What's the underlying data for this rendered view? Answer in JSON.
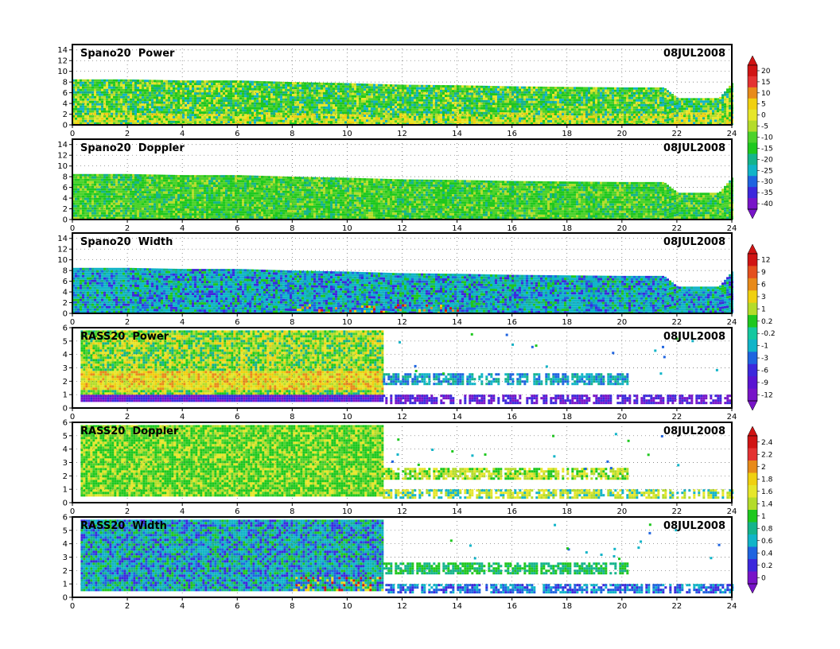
{
  "date": "08JUL2008",
  "x_ticks": [
    "0",
    "2",
    "4",
    "6",
    "8",
    "10",
    "12",
    "14",
    "16",
    "18",
    "20",
    "22",
    "24"
  ],
  "colorbars": [
    {
      "id": "power-doppler-scale",
      "labels": [
        "20",
        "15",
        "10",
        "5",
        "0",
        "-5",
        "-10",
        "-15",
        "-20",
        "-25",
        "-30",
        "-35",
        "-40"
      ],
      "colors": [
        "#d01414",
        "#e43232",
        "#e88a1a",
        "#f0d010",
        "#e6e62a",
        "#b4dc2a",
        "#4cd22a",
        "#1ec81e",
        "#14b48c",
        "#10b4c8",
        "#1e64e0",
        "#3c28dc",
        "#7814c8"
      ]
    },
    {
      "id": "width-power-scale",
      "labels": [
        "12",
        "9",
        "6",
        "3",
        "1",
        "0.2",
        "-0.2",
        "-1",
        "-3",
        "-6",
        "-9",
        "-12"
      ],
      "colors": [
        "#d01414",
        "#e4501e",
        "#e88a1a",
        "#f0d010",
        "#b4dc2a",
        "#1ec81e",
        "#14c8a0",
        "#10b4c8",
        "#1e64e0",
        "#3c28dc",
        "#5a14d2",
        "#7814c8"
      ]
    },
    {
      "id": "doppler-width-scale",
      "labels": [
        "2.4",
        "2.2",
        "2",
        "1.8",
        "1.6",
        "1.4",
        "1",
        "0.8",
        "0.6",
        "0.4",
        "0.2",
        "0"
      ],
      "colors": [
        "#d01414",
        "#e43232",
        "#e88a1a",
        "#f0d010",
        "#e6e62a",
        "#b4dc2a",
        "#1ec81e",
        "#14b48c",
        "#10b4c8",
        "#1e64e0",
        "#3c28dc",
        "#7814c8"
      ]
    }
  ],
  "chart_data": [
    {
      "type": "heatmap",
      "title": "Spano20  Power",
      "date": "08JUL2008",
      "xlim": [
        0,
        24
      ],
      "ylim": [
        0,
        15
      ],
      "y_ticks": [
        "0",
        "2",
        "4",
        "6",
        "8",
        "10",
        "12",
        "14"
      ],
      "x_ticks": [
        "0",
        "2",
        "4",
        "6",
        "8",
        "10",
        "12",
        "14",
        "16",
        "18",
        "20",
        "22",
        "24"
      ],
      "grid": true,
      "top_profile": {
        "x": [
          0,
          2,
          4,
          6,
          8,
          10,
          12,
          14,
          16,
          18,
          20,
          21.5,
          22,
          23.5,
          24
        ],
        "y": [
          8.5,
          8.5,
          8.3,
          8.3,
          8,
          7.8,
          7.5,
          7.4,
          7.2,
          7.1,
          7,
          7,
          5,
          5,
          8
        ]
      },
      "colorbar": "power-doppler-scale"
    },
    {
      "type": "heatmap",
      "title": "Spano20  Doppler",
      "date": "08JUL2008",
      "xlim": [
        0,
        24
      ],
      "ylim": [
        0,
        15
      ],
      "y_ticks": [
        "0",
        "2",
        "4",
        "6",
        "8",
        "10",
        "12",
        "14"
      ],
      "x_ticks": [
        "0",
        "2",
        "4",
        "6",
        "8",
        "10",
        "12",
        "14",
        "16",
        "18",
        "20",
        "22",
        "24"
      ],
      "grid": true,
      "top_profile": {
        "x": [
          0,
          2,
          4,
          6,
          8,
          10,
          12,
          14,
          16,
          18,
          20,
          21.5,
          22,
          23.5,
          24
        ],
        "y": [
          8.5,
          8.5,
          8.3,
          8.3,
          8,
          7.8,
          7.5,
          7.4,
          7.2,
          7.1,
          7,
          7,
          5,
          5,
          8
        ]
      },
      "colorbar": "power-doppler-scale"
    },
    {
      "type": "heatmap",
      "title": "Spano20  Width",
      "date": "08JUL2008",
      "xlim": [
        0,
        24
      ],
      "ylim": [
        0,
        15
      ],
      "y_ticks": [
        "0",
        "2",
        "4",
        "6",
        "8",
        "10",
        "12",
        "14"
      ],
      "x_ticks": [
        "0",
        "2",
        "4",
        "6",
        "8",
        "10",
        "12",
        "14",
        "16",
        "18",
        "20",
        "22",
        "24"
      ],
      "grid": true,
      "top_profile": {
        "x": [
          0,
          2,
          4,
          6,
          8,
          10,
          12,
          14,
          16,
          18,
          20,
          21.5,
          22,
          23.5,
          24
        ],
        "y": [
          8.5,
          8.5,
          8.3,
          8.3,
          8,
          7.8,
          7.5,
          7.4,
          7.2,
          7.1,
          7,
          7,
          5,
          5,
          8
        ]
      },
      "colorbar": "width-power-scale"
    },
    {
      "type": "heatmap",
      "title": "RASS20  Power",
      "date": "08JUL2008",
      "xlim": [
        0,
        24
      ],
      "ylim": [
        0,
        6
      ],
      "y_ticks": [
        "0",
        "1",
        "2",
        "3",
        "4",
        "5",
        "6"
      ],
      "x_ticks": [
        "0",
        "2",
        "4",
        "6",
        "8",
        "10",
        "12",
        "14",
        "16",
        "18",
        "20",
        "22",
        "24"
      ],
      "grid": true,
      "dense_region": {
        "x": [
          0.3,
          11.3
        ],
        "y": [
          0.5,
          5.8
        ]
      },
      "sparse_bands": [
        {
          "x": [
            11.3,
            20.2
          ],
          "y": [
            1.8,
            2.6
          ]
        },
        {
          "x": [
            11.3,
            24
          ],
          "y": [
            0.4,
            1.0
          ]
        }
      ],
      "colorbar": "width-power-scale"
    },
    {
      "type": "heatmap",
      "title": "RASS20  Doppler",
      "date": "08JUL2008",
      "xlim": [
        0,
        24
      ],
      "ylim": [
        0,
        6
      ],
      "y_ticks": [
        "0",
        "1",
        "2",
        "3",
        "4",
        "5",
        "6"
      ],
      "x_ticks": [
        "0",
        "2",
        "4",
        "6",
        "8",
        "10",
        "12",
        "14",
        "16",
        "18",
        "20",
        "22",
        "24"
      ],
      "grid": true,
      "dense_region": {
        "x": [
          0.3,
          11.3
        ],
        "y": [
          0.5,
          5.8
        ]
      },
      "sparse_bands": [
        {
          "x": [
            11.3,
            20.2
          ],
          "y": [
            1.8,
            2.6
          ]
        },
        {
          "x": [
            11.3,
            24
          ],
          "y": [
            0.4,
            1.0
          ]
        }
      ],
      "colorbar": "doppler-width-scale"
    },
    {
      "type": "heatmap",
      "title": "RASS20  Width",
      "date": "08JUL2008",
      "xlim": [
        0,
        24
      ],
      "ylim": [
        0,
        6
      ],
      "y_ticks": [
        "0",
        "1",
        "2",
        "3",
        "4",
        "5",
        "6"
      ],
      "x_ticks": [
        "0",
        "2",
        "4",
        "6",
        "8",
        "10",
        "12",
        "14",
        "16",
        "18",
        "20",
        "22",
        "24"
      ],
      "grid": true,
      "dense_region": {
        "x": [
          0.3,
          11.3
        ],
        "y": [
          0.5,
          5.8
        ]
      },
      "sparse_bands": [
        {
          "x": [
            11.3,
            20.2
          ],
          "y": [
            1.8,
            2.6
          ]
        },
        {
          "x": [
            11.3,
            24
          ],
          "y": [
            0.4,
            1.0
          ]
        }
      ],
      "colorbar": "doppler-width-scale"
    }
  ]
}
